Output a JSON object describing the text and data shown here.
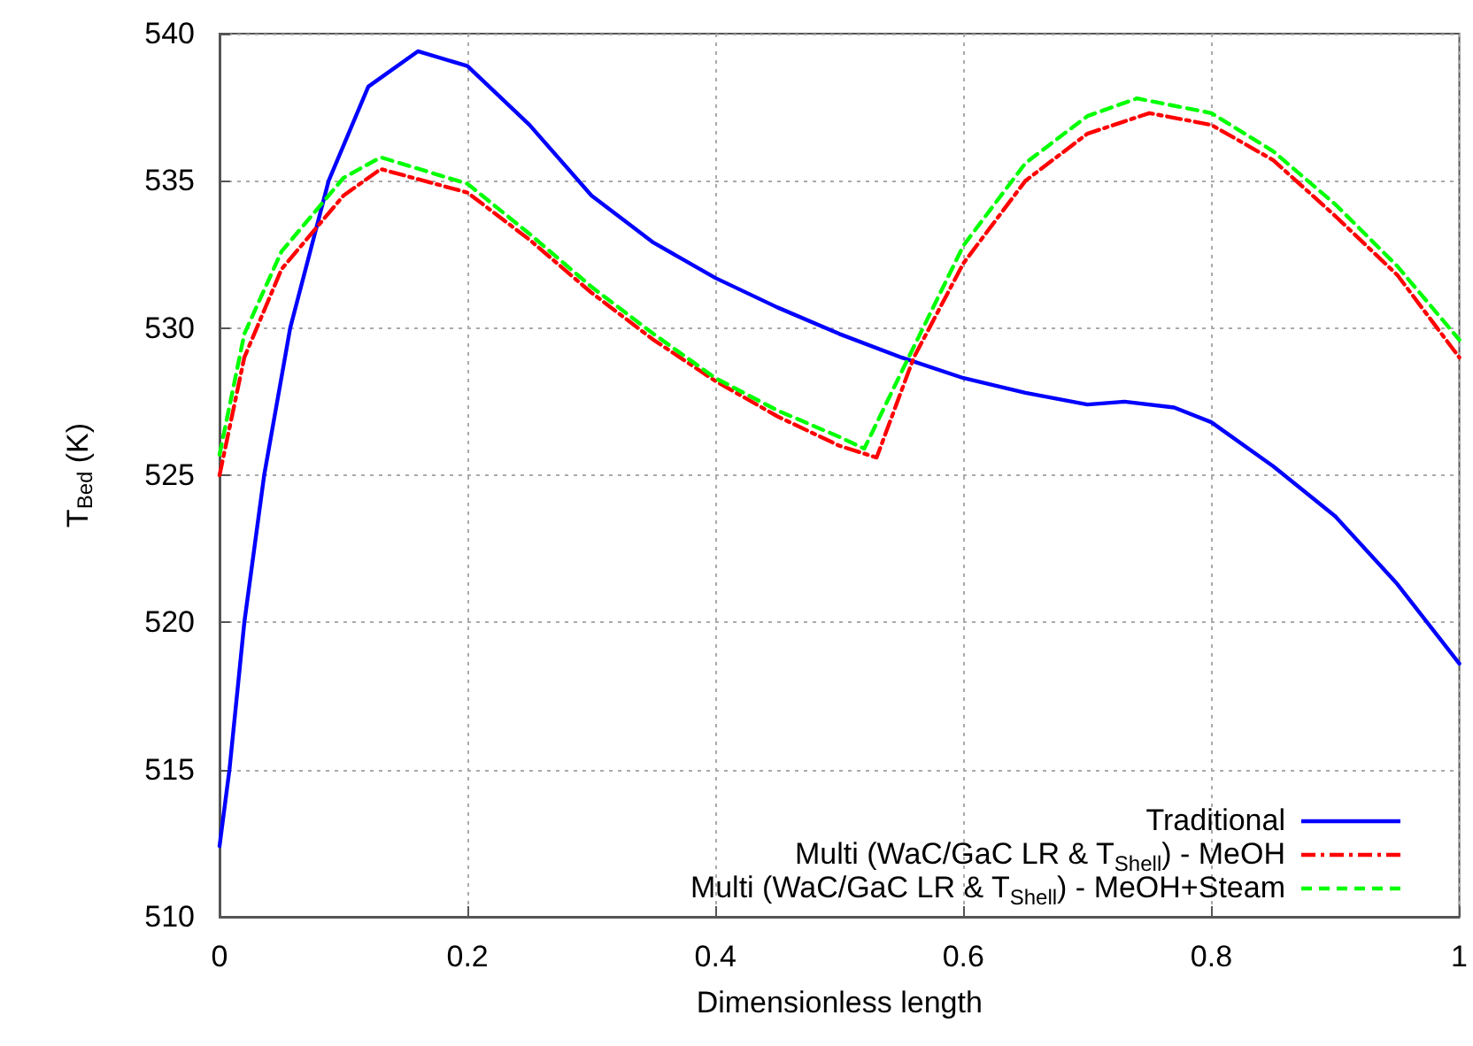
{
  "chart_data": {
    "type": "line",
    "xlabel": "Dimensionless length",
    "ylabel": "T$_{Bed}$ (K)",
    "xlim": [
      0,
      1
    ],
    "xticks": [
      0,
      0.2,
      0.4,
      0.6,
      0.8,
      1
    ],
    "ylim": [
      510,
      540
    ],
    "yticks": [
      510,
      515,
      520,
      525,
      530,
      535,
      540
    ],
    "grid": true,
    "legend": "bottom right",
    "marker": "none",
    "series": [
      {
        "name": "Traditional",
        "color": "#0000ff",
        "line_style": "solid",
        "x": [
          0,
          0.008,
          0.02,
          0.036,
          0.057,
          0.088,
          0.12,
          0.16,
          0.2,
          0.25,
          0.3,
          0.35,
          0.4,
          0.45,
          0.5,
          0.55,
          0.6,
          0.65,
          0.7,
          0.73,
          0.77,
          0.8,
          0.85,
          0.9,
          0.95,
          1
        ],
        "values": [
          512.4,
          515,
          520,
          525,
          530,
          535,
          538.2,
          539.4,
          538.9,
          536.9,
          534.5,
          532.9,
          531.7,
          530.7,
          529.8,
          529,
          528.3,
          527.8,
          527.4,
          527.5,
          527.3,
          526.8,
          525.3,
          523.6,
          521.3,
          518.6
        ]
      },
      {
        "name": "Multi (WaC/GaC LR & T$_{Shell}$) - MeOH",
        "color": "#ff0000",
        "line_style": "dashdot",
        "x": [
          0,
          0.02,
          0.05,
          0.1,
          0.13,
          0.2,
          0.25,
          0.3,
          0.35,
          0.4,
          0.45,
          0.5,
          0.53,
          0.56,
          0.6,
          0.65,
          0.7,
          0.75,
          0.8,
          0.85,
          0.9,
          0.95,
          1
        ],
        "values": [
          525,
          529,
          532,
          534.5,
          535.4,
          534.6,
          533,
          531.2,
          529.6,
          528.2,
          527,
          526,
          525.6,
          529,
          532.2,
          535,
          536.6,
          537.3,
          536.9,
          535.7,
          533.8,
          531.8,
          529
        ]
      },
      {
        "name": "Multi (WaC/GaC LR & T$_{Shell}$) - MeOH+Steam",
        "color": "#00ff00",
        "line_style": "dashed",
        "x": [
          0,
          0.02,
          0.05,
          0.1,
          0.13,
          0.2,
          0.25,
          0.3,
          0.35,
          0.4,
          0.45,
          0.5,
          0.52,
          0.55,
          0.6,
          0.65,
          0.7,
          0.74,
          0.8,
          0.85,
          0.9,
          0.95,
          1
        ],
        "values": [
          525.7,
          529.8,
          532.6,
          535.1,
          535.8,
          534.9,
          533.2,
          531.4,
          529.8,
          528.3,
          527.2,
          526.3,
          525.9,
          528.5,
          532.8,
          535.6,
          537.2,
          537.8,
          537.3,
          536,
          534.2,
          532.1,
          529.6
        ]
      }
    ]
  }
}
